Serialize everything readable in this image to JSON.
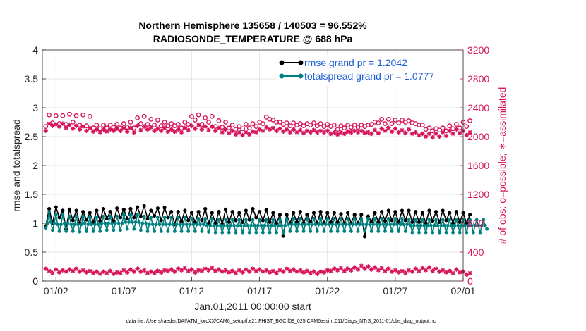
{
  "chart_data": {
    "type": "line",
    "title_line1": "Northern Hemisphere 135658 / 140503 = 96.552%",
    "title_line2": "RADIOSONDE_TEMPERATURE @ 688 hPa",
    "xlabel": "Jan.01,2011 00:00:00 start",
    "ylabel_left": "rmse and totalspread",
    "ylabel_right": "# of obs: o=possible; ∗=assimilated",
    "x_tick_labels": [
      "01/02",
      "01/07",
      "01/12",
      "01/17",
      "01/22",
      "01/27",
      "02/01"
    ],
    "x_tick_days": [
      1,
      6,
      11,
      16,
      21,
      26,
      31
    ],
    "xlim_days": [
      0,
      31
    ],
    "ylim_left": [
      0,
      4
    ],
    "y_ticks_left": [
      "0",
      "0.5",
      "1",
      "1.5",
      "2",
      "2.5",
      "3",
      "3.5",
      "4"
    ],
    "ylim_right": [
      0,
      3200
    ],
    "y_ticks_right": [
      "0",
      "400",
      "800",
      "1200",
      "1600",
      "2000",
      "2400",
      "2800",
      "3200"
    ],
    "legend": [
      {
        "label": "rmse grand pr = 1.2042",
        "color": "#000000"
      },
      {
        "label": "totalspread grand pr = 1.0777",
        "color": "#008080"
      }
    ],
    "series_rmse_12h": {
      "name": "rmse",
      "color": "#000000",
      "values": [
        0.95,
        1.25,
        1.0,
        1.28,
        1.1,
        1.22,
        0.9,
        1.24,
        1.05,
        1.22,
        1.0,
        1.2,
        1.06,
        1.18,
        1.02,
        1.22,
        1.04,
        1.25,
        1.08,
        1.2,
        1.03,
        1.26,
        1.1,
        1.24,
        1.08,
        1.25,
        1.1,
        1.28,
        1.12,
        1.3,
        1.08,
        1.22,
        1.13,
        1.26,
        1.05,
        1.27,
        1.1,
        1.2,
        0.98,
        1.2,
        1.03,
        1.22,
        1.05,
        1.18,
        1.02,
        1.2,
        1.05,
        1.25,
        1.0,
        1.18,
        1.0,
        1.2,
        0.98,
        1.24,
        1.02,
        1.2,
        1.05,
        1.18,
        1.02,
        1.22,
        1.06,
        1.25,
        1.1,
        1.2,
        1.05,
        1.23,
        1.02,
        1.18,
        1.0,
        1.15,
        0.78,
        1.15,
        1.0,
        1.18,
        1.02,
        1.2,
        1.0,
        1.15,
        1.03,
        1.18,
        1.0,
        1.2,
        1.0,
        1.18,
        1.02,
        1.18,
        1.02,
        1.16,
        1.0,
        1.18,
        1.0,
        1.15,
        1.0,
        1.15,
        0.77,
        1.12,
        1.03,
        1.18,
        1.02,
        1.2,
        1.04,
        1.22,
        1.05,
        1.2,
        1.02,
        1.22,
        1.05,
        1.22,
        1.02,
        1.2,
        1.02,
        1.18,
        1.0,
        1.22,
        1.04,
        1.2,
        1.02,
        1.22,
        1.05,
        1.18,
        1.0,
        1.2,
        1.02,
        1.18,
        1.0,
        1.15
      ]
    },
    "series_spread_6h": {
      "name": "totalspread",
      "color": "#008080",
      "values": [
        0.92,
        1.0,
        1.2,
        1.02,
        0.88,
        1.0,
        1.15,
        0.98,
        0.86,
        0.98,
        1.15,
        1.0,
        0.86,
        1.0,
        1.12,
        0.98,
        0.86,
        0.98,
        1.12,
        0.98,
        0.85,
        0.98,
        1.12,
        1.0,
        0.86,
        0.98,
        1.1,
        0.98,
        0.86,
        0.98,
        1.1,
        0.98,
        0.86,
        1.0,
        1.12,
        1.0,
        0.88,
        1.0,
        1.12,
        1.0,
        0.88,
        1.0,
        1.12,
        1.0,
        0.88,
        1.0,
        1.15,
        1.02,
        0.9,
        1.02,
        1.15,
        1.02,
        0.9,
        1.02,
        1.15,
        1.02,
        0.88,
        1.0,
        1.12,
        1.0,
        0.86,
        0.98,
        1.1,
        0.98,
        0.86,
        0.98,
        1.1,
        0.98,
        0.86,
        0.98,
        1.1,
        0.98,
        0.86,
        0.98,
        1.1,
        0.98,
        0.86,
        0.98,
        1.1,
        0.98,
        0.86,
        0.98,
        1.1,
        0.98,
        0.86,
        0.98,
        1.08,
        0.98,
        0.86,
        0.98,
        1.08,
        0.98,
        0.86,
        0.98,
        1.08,
        0.96,
        0.85,
        0.96,
        1.08,
        0.96,
        0.84,
        0.96,
        1.06,
        0.96,
        0.84,
        0.96,
        1.06,
        0.96,
        0.84,
        0.96,
        1.06,
        0.96,
        0.84,
        0.96,
        1.06,
        0.96,
        0.84,
        0.96,
        1.06,
        0.96,
        0.84,
        0.96,
        1.06,
        0.96,
        0.84,
        0.96,
        1.06,
        0.96,
        0.84,
        0.96,
        1.06,
        0.96,
        0.84,
        0.96,
        1.06,
        0.96,
        0.84,
        0.96,
        1.06,
        0.96,
        0.84,
        0.96,
        1.08,
        0.98,
        0.86,
        0.98,
        1.08,
        0.98,
        0.86,
        0.98,
        1.08,
        0.98,
        0.86,
        0.98,
        1.08,
        0.98,
        0.86,
        0.98,
        1.08,
        0.98,
        0.86,
        0.98,
        1.08,
        0.98,
        0.86,
        0.98,
        1.08,
        0.98,
        0.86,
        0.98,
        1.08,
        0.98,
        0.86,
        0.98,
        1.08,
        0.98,
        0.86,
        0.98,
        1.08,
        0.98,
        0.86,
        0.98,
        1.08,
        0.98,
        0.86,
        0.98,
        1.08,
        0.98,
        0.86,
        0.98,
        1.08,
        0.98,
        0.86,
        0.98,
        1.08,
        0.98,
        0.86,
        0.98,
        1.08,
        0.98,
        0.86,
        0.98,
        1.08,
        0.98,
        0.86,
        0.98,
        1.08,
        0.98,
        0.86,
        0.98,
        1.08,
        0.98,
        0.86,
        0.98,
        1.06,
        0.96,
        0.84,
        0.96,
        1.06,
        0.96,
        0.84,
        0.96,
        1.06,
        0.96,
        0.84,
        0.96,
        1.06,
        0.96,
        0.84,
        0.96,
        1.06,
        0.96,
        0.84,
        0.96,
        1.06,
        0.96,
        0.84,
        0.96,
        1.06,
        0.96,
        0.84,
        0.96,
        1.06,
        0.96,
        0.84,
        0.96,
        1.06,
        0.96,
        0.84,
        0.96,
        1.06,
        0.96,
        0.84,
        0.96,
        1.06,
        0.96,
        0.84,
        0.96,
        1.06,
        0.96,
        0.9
      ]
    },
    "obs_possible_12h": {
      "name": "possible",
      "color": "#d6145a",
      "values": [
        2140,
        2300,
        2190,
        2290,
        2180,
        2290,
        2170,
        2310,
        2200,
        2290,
        2160,
        2300,
        2150,
        2280,
        2120,
        2160,
        2110,
        2160,
        2120,
        2160,
        2130,
        2170,
        2120,
        2180,
        2130,
        2200,
        2120,
        2260,
        2180,
        2280,
        2170,
        2240,
        2160,
        2230,
        2150,
        2200,
        2150,
        2180,
        2150,
        2170,
        2120,
        2200,
        2170,
        2280,
        2230,
        2300,
        2170,
        2260,
        2200,
        2280,
        2140,
        2220,
        2130,
        2200,
        2120,
        2160,
        2100,
        2140,
        2110,
        2170,
        2120,
        2180,
        2140,
        2200,
        2180,
        2270,
        2240,
        2230,
        2200,
        2200,
        2170,
        2190,
        2150,
        2190,
        2160,
        2180,
        2150,
        2180,
        2160,
        2190,
        2150,
        2180,
        2140,
        2170,
        2140,
        2160,
        2100,
        2150,
        2120,
        2160,
        2130,
        2160,
        2130,
        2160,
        2140,
        2160,
        2170,
        2200,
        2190,
        2240,
        2180,
        2240,
        2180,
        2230,
        2190,
        2230,
        2200,
        2220,
        2190,
        2180,
        2160,
        2160,
        2100,
        2120,
        2080,
        2110,
        2090,
        2120,
        2080,
        2150,
        2110,
        2170,
        2120,
        2200,
        2140,
        2220
      ]
    },
    "obs_assimilated_12h": {
      "name": "assimilated",
      "color": "#d6145a",
      "values": [
        2080,
        2180,
        2150,
        2170,
        2140,
        2180,
        2120,
        2160,
        2110,
        2150,
        2100,
        2140,
        2080,
        2120,
        2070,
        2100,
        2060,
        2100,
        2070,
        2100,
        2080,
        2110,
        2080,
        2120,
        2070,
        2120,
        2060,
        2150,
        2090,
        2140,
        2100,
        2130,
        2080,
        2110,
        2080,
        2120,
        2070,
        2100,
        2070,
        2100,
        2060,
        2120,
        2090,
        2150,
        2110,
        2160,
        2100,
        2140,
        2090,
        2140,
        2080,
        2120,
        2060,
        2100,
        2050,
        2080,
        2030,
        2060,
        2020,
        2060,
        2030,
        2070,
        2060,
        2100,
        2080,
        2130,
        2100,
        2120,
        2080,
        2110,
        2070,
        2100,
        2060,
        2100,
        2060,
        2090,
        2050,
        2080,
        2060,
        2090,
        2060,
        2080,
        2060,
        2080,
        2040,
        2060,
        2030,
        2060,
        2040,
        2070,
        2060,
        2080,
        2060,
        2080,
        2050,
        2060,
        2040,
        2090,
        2050,
        2110,
        2080,
        2120,
        2070,
        2110,
        2060,
        2090,
        2050,
        2100,
        2040,
        2060,
        2020,
        2040,
        2000,
        2040,
        1990,
        2040,
        2000,
        2060,
        2010,
        2080,
        2040,
        2100,
        2050,
        2080,
        2020,
        2060
      ]
    },
    "obs_bottom_12h": {
      "name": "assimilated (secondary)",
      "color": "#d6145a",
      "values": [
        170,
        140,
        110,
        160,
        120,
        150,
        130,
        160,
        140,
        170,
        130,
        150,
        120,
        140,
        110,
        130,
        100,
        130,
        110,
        140,
        100,
        120,
        110,
        150,
        120,
        160,
        130,
        170,
        130,
        150,
        110,
        130,
        110,
        140,
        120,
        150,
        140,
        160,
        130,
        170,
        150,
        180,
        140,
        160,
        120,
        150,
        140,
        170,
        150,
        180,
        140,
        160,
        130,
        150,
        120,
        140,
        110,
        150,
        120,
        160,
        130,
        170,
        140,
        160,
        130,
        150,
        120,
        140,
        110,
        150,
        130,
        170,
        140,
        160,
        130,
        150,
        120,
        140,
        110,
        130,
        100,
        130,
        120,
        150,
        140,
        170,
        150,
        180,
        140,
        170,
        150,
        190,
        160,
        210,
        170,
        200,
        160,
        190,
        150,
        180,
        140,
        170,
        130,
        150,
        120,
        140,
        110,
        150,
        130,
        170,
        140,
        180,
        150,
        190,
        140,
        170,
        130,
        150,
        120,
        140,
        110,
        160,
        120,
        130,
        90,
        110
      ]
    }
  },
  "footer": "data file: /Users/raeder/DAI/ATM_forcXX/CAM6_setup/f.e21.FHIST_BGC.f09_025.CAM6assim.011/Diags_NTrS_2011-01/obs_diag_output.nc"
}
